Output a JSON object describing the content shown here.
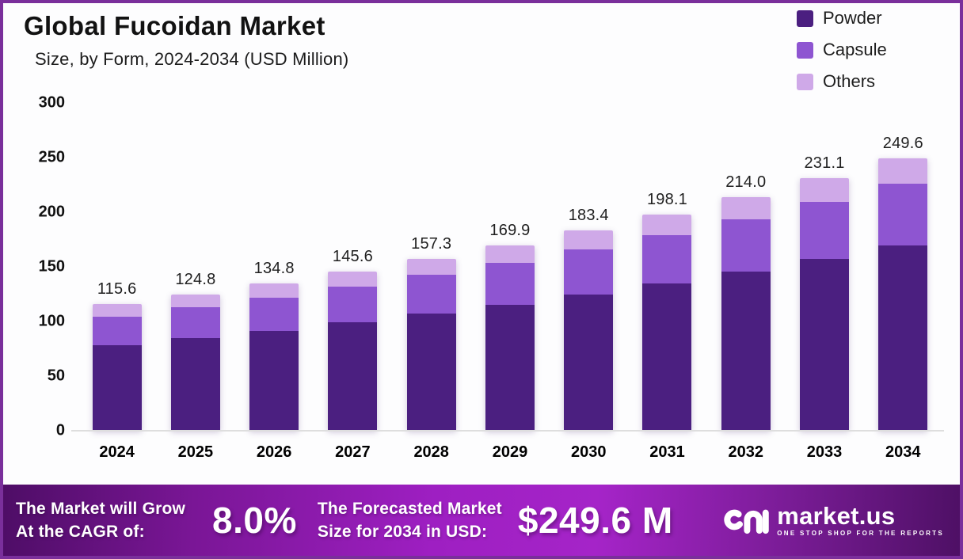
{
  "header": {
    "title": "Global Fucoidan Market",
    "subtitle": "Size, by Form, 2024-2034 (USD Million)"
  },
  "legend": {
    "items": [
      {
        "label": "Powder",
        "color": "#4B1F80"
      },
      {
        "label": "Capsule",
        "color": "#8E55D1"
      },
      {
        "label": "Others",
        "color": "#CFA9E8"
      }
    ]
  },
  "chart_data": {
    "type": "bar",
    "stacked": true,
    "title": "Global Fucoidan Market",
    "subtitle": "Size, by Form, 2024-2034 (USD Million)",
    "xlabel": "",
    "ylabel": "",
    "ylim": [
      0,
      300
    ],
    "yticks": [
      0,
      50,
      100,
      150,
      200,
      250,
      300
    ],
    "grid": false,
    "legend_position": "top-right",
    "categories": [
      "2024",
      "2025",
      "2026",
      "2027",
      "2028",
      "2029",
      "2030",
      "2031",
      "2032",
      "2033",
      "2034"
    ],
    "totals": [
      115.6,
      124.8,
      134.8,
      145.6,
      157.3,
      169.9,
      183.4,
      198.1,
      214.0,
      231.1,
      249.6
    ],
    "total_labels": [
      "115.6",
      "124.8",
      "134.8",
      "145.6",
      "157.3",
      "169.9",
      "183.4",
      "198.1",
      "214.0",
      "231.1",
      "249.6"
    ],
    "series": [
      {
        "name": "Powder",
        "color": "#4B1F80",
        "values": [
          78.6,
          84.9,
          91.7,
          99.0,
          107.0,
          115.5,
          124.7,
          134.7,
          145.5,
          157.1,
          169.7
        ],
        "note": "segment values estimated from bar heights"
      },
      {
        "name": "Capsule",
        "color": "#8E55D1",
        "values": [
          26.0,
          28.1,
          30.3,
          32.8,
          35.4,
          38.2,
          41.3,
          44.6,
          48.2,
          52.0,
          56.2
        ],
        "note": "segment values estimated from bar heights"
      },
      {
        "name": "Others",
        "color": "#CFA9E8",
        "values": [
          11.0,
          11.8,
          12.8,
          13.8,
          14.9,
          16.2,
          17.4,
          18.8,
          20.3,
          22.0,
          23.7
        ],
        "note": "segment values estimated from bar heights"
      }
    ]
  },
  "footer": {
    "cagr_label_line1": "The Market will Grow",
    "cagr_label_line2": "At the CAGR of:",
    "cagr_value": "8.0%",
    "forecast_label_line1": "The Forecasted Market",
    "forecast_label_line2": "Size for 2034 in USD:",
    "forecast_value": "$249.6 M",
    "brand": {
      "name": "market.us",
      "tagline": "ONE STOP SHOP FOR THE REPORTS"
    },
    "gradient": [
      "#4E0D66",
      "#7A1696",
      "#9E1FC2",
      "#A524C8",
      "#7E1D9B",
      "#4E1065"
    ]
  },
  "frame": {
    "border_color": "#7A2F9B",
    "background": "#FDFDFE"
  }
}
